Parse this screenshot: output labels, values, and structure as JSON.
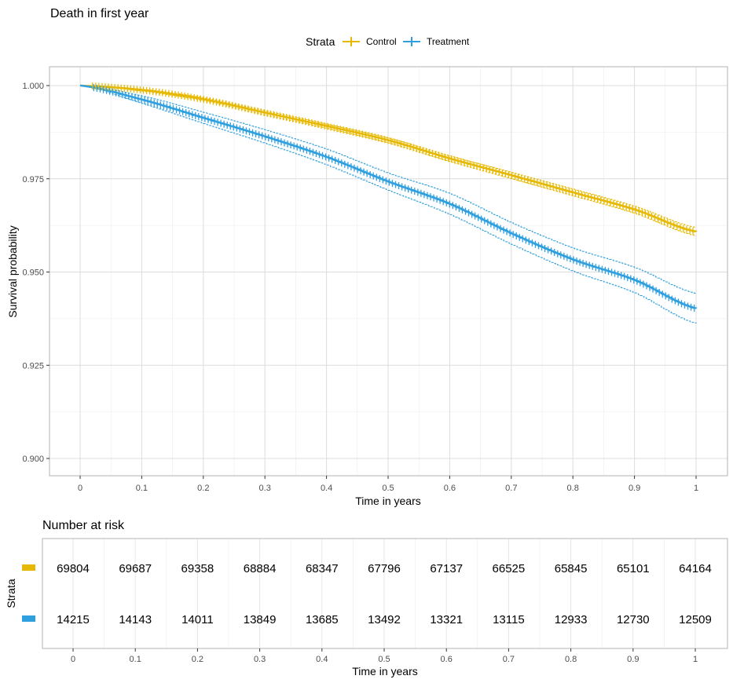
{
  "chart_data": [
    {
      "type": "line",
      "title": "Death in first year",
      "xlabel": "Time in years",
      "ylabel": "Survival probability",
      "xlim": [
        0,
        1
      ],
      "ylim": [
        0.9,
        1.0
      ],
      "x_ticks": [
        "0",
        "0.1",
        "0.2",
        "0.3",
        "0.4",
        "0.5",
        "0.6",
        "0.7",
        "0.8",
        "0.9",
        "1"
      ],
      "y_ticks": [
        "0.900",
        "0.925",
        "0.950",
        "0.975",
        "1.000"
      ],
      "grid": true,
      "legend_title": "Strata",
      "legend_position": "top",
      "series": [
        {
          "name": "Control",
          "color": "#E7B800",
          "x": [
            0,
            0.1,
            0.2,
            0.3,
            0.4,
            0.5,
            0.6,
            0.7,
            0.8,
            0.9,
            1.0
          ],
          "y": [
            1.0,
            0.9988,
            0.9963,
            0.9927,
            0.9891,
            0.9853,
            0.9804,
            0.9759,
            0.9713,
            0.9667,
            0.9608
          ],
          "lower": [
            1.0,
            0.9985,
            0.9959,
            0.9921,
            0.9885,
            0.9846,
            0.9796,
            0.975,
            0.9704,
            0.9657,
            0.9597
          ],
          "upper": [
            1.0,
            0.999,
            0.9967,
            0.9932,
            0.9896,
            0.9859,
            0.9811,
            0.9767,
            0.9722,
            0.9676,
            0.9619
          ]
        },
        {
          "name": "Treatment",
          "color": "#2E9FDF",
          "x": [
            0,
            0.1,
            0.2,
            0.3,
            0.4,
            0.5,
            0.6,
            0.7,
            0.8,
            0.9,
            1.0
          ],
          "y": [
            1.0,
            0.9962,
            0.9913,
            0.9863,
            0.9808,
            0.9742,
            0.9682,
            0.9603,
            0.9533,
            0.9478,
            0.9402
          ],
          "lower": [
            1.0,
            0.9952,
            0.9898,
            0.9845,
            0.9787,
            0.9719,
            0.9654,
            0.9574,
            0.9502,
            0.9444,
            0.9362
          ],
          "upper": [
            1.0,
            0.9972,
            0.9928,
            0.9881,
            0.9829,
            0.9765,
            0.971,
            0.9632,
            0.9564,
            0.9512,
            0.9442
          ]
        }
      ]
    },
    {
      "type": "table",
      "title": "Number at risk",
      "xlabel": "Time in years",
      "ylabel": "Strata",
      "xlim": [
        0,
        1
      ],
      "x_ticks": [
        "0",
        "0.1",
        "0.2",
        "0.3",
        "0.4",
        "0.5",
        "0.6",
        "0.7",
        "0.8",
        "0.9",
        "1"
      ],
      "rows": [
        {
          "color": "#E7B800",
          "values": [
            "69804",
            "69687",
            "69358",
            "68884",
            "68347",
            "67796",
            "67137",
            "66525",
            "65845",
            "65101",
            "64164"
          ]
        },
        {
          "color": "#2E9FDF",
          "values": [
            "14215",
            "14143",
            "14011",
            "13849",
            "13685",
            "13492",
            "13321",
            "13115",
            "12933",
            "12730",
            "12509"
          ]
        }
      ]
    }
  ]
}
